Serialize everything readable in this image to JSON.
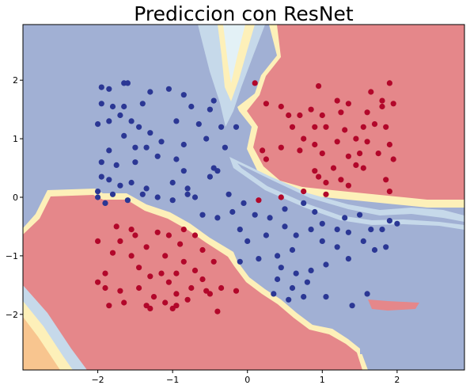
{
  "chart_data": {
    "type": "scatter",
    "title": "Prediccion con ResNet",
    "xlabel": "",
    "ylabel": "",
    "xlim": [
      -3.0,
      2.9
    ],
    "ylim": [
      -2.95,
      2.95
    ],
    "xticks": [
      -2,
      -1,
      0,
      1,
      2
    ],
    "yticks": [
      -2,
      -1,
      0,
      1,
      2
    ],
    "xtick_labels": [
      "−2",
      "−1",
      "0",
      "1",
      "2"
    ],
    "ytick_labels": [
      "−2",
      "−1",
      "0",
      "1",
      "2"
    ],
    "background": "decision-regions",
    "colors": {
      "class_blue": "#2b3794",
      "class_red": "#b2072a",
      "region_blue": "#a1b0d4",
      "region_red": "#e5878a",
      "region_mid_light": "#d6e6f0",
      "region_mid_yellow": "#fdf0b9",
      "region_mid_orange": "#f8c58f"
    },
    "series": [
      {
        "class": "blue",
        "points": [
          [
            -1.95,
            1.88
          ],
          [
            -1.85,
            1.85
          ],
          [
            -1.65,
            1.95
          ],
          [
            -1.6,
            1.95
          ],
          [
            -1.3,
            1.8
          ],
          [
            -1.05,
            1.85
          ],
          [
            -0.85,
            1.75
          ],
          [
            -0.75,
            1.55
          ],
          [
            -0.5,
            1.5
          ],
          [
            -0.45,
            1.65
          ],
          [
            -1.95,
            1.6
          ],
          [
            -1.8,
            1.55
          ],
          [
            -1.65,
            1.55
          ],
          [
            -1.4,
            1.6
          ],
          [
            -1.7,
            1.4
          ],
          [
            -1.85,
            1.3
          ],
          [
            -2.0,
            1.25
          ],
          [
            -1.55,
            1.3
          ],
          [
            -1.45,
            1.2
          ],
          [
            -1.3,
            1.1
          ],
          [
            -0.95,
            1.3
          ],
          [
            -0.65,
            1.25
          ],
          [
            -0.35,
            1.2
          ],
          [
            -0.15,
            1.2
          ],
          [
            -1.65,
            1.05
          ],
          [
            -1.5,
            0.85
          ],
          [
            -1.35,
            0.85
          ],
          [
            -1.15,
            0.95
          ],
          [
            -0.85,
            0.9
          ],
          [
            -0.55,
            1.0
          ],
          [
            -0.3,
            0.85
          ],
          [
            -1.85,
            0.8
          ],
          [
            -1.95,
            0.6
          ],
          [
            -1.75,
            0.55
          ],
          [
            -1.5,
            0.6
          ],
          [
            -1.2,
            0.7
          ],
          [
            -0.95,
            0.65
          ],
          [
            -0.85,
            0.45
          ],
          [
            -0.45,
            0.5
          ],
          [
            -0.4,
            0.45
          ],
          [
            -1.95,
            0.35
          ],
          [
            -1.85,
            0.3
          ],
          [
            -1.7,
            0.2
          ],
          [
            -1.55,
            0.25
          ],
          [
            -1.35,
            0.15
          ],
          [
            -1.0,
            0.25
          ],
          [
            -0.8,
            0.15
          ],
          [
            -0.5,
            0.35
          ],
          [
            -2.0,
            0.1
          ],
          [
            -1.8,
            0.05
          ],
          [
            -1.4,
            0.05
          ],
          [
            -1.2,
            0.0
          ],
          [
            -0.8,
            0.05
          ],
          [
            -0.25,
            0.05
          ],
          [
            -2.0,
            0.0
          ],
          [
            -1.9,
            -0.1
          ],
          [
            -1.6,
            -0.05
          ],
          [
            -1.0,
            -0.05
          ],
          [
            -0.7,
            0.0
          ],
          [
            -0.6,
            -0.3
          ],
          [
            -0.4,
            -0.35
          ],
          [
            -0.2,
            -0.25
          ],
          [
            -0.05,
            -0.1
          ],
          [
            0.1,
            -0.3
          ],
          [
            0.3,
            -0.35
          ],
          [
            0.5,
            -0.2
          ],
          [
            0.75,
            -0.1
          ],
          [
            0.9,
            -0.25
          ],
          [
            -0.1,
            -0.55
          ],
          [
            0.0,
            -0.75
          ],
          [
            0.25,
            -0.65
          ],
          [
            0.5,
            -0.5
          ],
          [
            0.65,
            -0.65
          ],
          [
            0.85,
            -0.55
          ],
          [
            1.0,
            -0.45
          ],
          [
            1.2,
            -0.55
          ],
          [
            1.3,
            -0.35
          ],
          [
            1.5,
            -0.3
          ],
          [
            1.65,
            -0.55
          ],
          [
            1.8,
            -0.55
          ],
          [
            1.9,
            -0.4
          ],
          [
            2.0,
            -0.45
          ],
          [
            1.35,
            -0.6
          ],
          [
            1.55,
            -0.75
          ],
          [
            1.7,
            -0.9
          ],
          [
            1.85,
            -0.85
          ],
          [
            1.2,
            -0.85
          ],
          [
            1.0,
            -0.75
          ],
          [
            0.6,
            -0.9
          ],
          [
            0.4,
            -1.0
          ],
          [
            0.15,
            -1.05
          ],
          [
            -0.1,
            -1.1
          ],
          [
            0.45,
            -1.2
          ],
          [
            0.65,
            -1.3
          ],
          [
            0.85,
            -1.25
          ],
          [
            1.05,
            -1.15
          ],
          [
            1.35,
            -1.05
          ],
          [
            0.4,
            -1.4
          ],
          [
            0.6,
            -1.55
          ],
          [
            0.35,
            -1.65
          ],
          [
            0.55,
            -1.75
          ],
          [
            0.75,
            -1.7
          ],
          [
            1.05,
            -1.7
          ],
          [
            1.4,
            -1.85
          ],
          [
            1.6,
            -1.65
          ],
          [
            0.8,
            -1.45
          ]
        ]
      },
      {
        "class": "red",
        "points": [
          [
            0.1,
            1.95
          ],
          [
            0.95,
            1.9
          ],
          [
            1.9,
            1.95
          ],
          [
            1.65,
            1.8
          ],
          [
            0.25,
            1.6
          ],
          [
            0.45,
            1.55
          ],
          [
            0.55,
            1.4
          ],
          [
            0.85,
            1.5
          ],
          [
            1.2,
            1.65
          ],
          [
            1.35,
            1.6
          ],
          [
            1.6,
            1.45
          ],
          [
            1.8,
            1.65
          ],
          [
            1.95,
            1.6
          ],
          [
            0.7,
            1.4
          ],
          [
            1.0,
            1.4
          ],
          [
            1.25,
            1.45
          ],
          [
            1.8,
            1.55
          ],
          [
            0.6,
            1.2
          ],
          [
            0.9,
            1.2
          ],
          [
            1.05,
            1.2
          ],
          [
            1.3,
            1.15
          ],
          [
            1.55,
            1.2
          ],
          [
            1.7,
            1.25
          ],
          [
            1.85,
            1.2
          ],
          [
            0.75,
            1.0
          ],
          [
            0.9,
            0.9
          ],
          [
            1.2,
            0.95
          ],
          [
            1.45,
            1.0
          ],
          [
            1.6,
            0.95
          ],
          [
            1.9,
            0.9
          ],
          [
            0.2,
            0.8
          ],
          [
            0.45,
            0.85
          ],
          [
            0.7,
            0.8
          ],
          [
            1.0,
            0.75
          ],
          [
            1.35,
            0.7
          ],
          [
            1.5,
            0.75
          ],
          [
            1.75,
            0.75
          ],
          [
            0.25,
            0.65
          ],
          [
            0.9,
            0.45
          ],
          [
            1.15,
            0.5
          ],
          [
            1.45,
            0.55
          ],
          [
            1.55,
            0.5
          ],
          [
            1.95,
            0.65
          ],
          [
            0.95,
            0.35
          ],
          [
            1.25,
            0.3
          ],
          [
            1.85,
            0.3
          ],
          [
            1.05,
            0.25
          ],
          [
            1.35,
            0.2
          ],
          [
            1.9,
            0.1
          ],
          [
            0.45,
            0.0
          ],
          [
            0.75,
            0.1
          ],
          [
            1.05,
            0.05
          ],
          [
            0.15,
            -0.05
          ],
          [
            -1.75,
            -0.5
          ],
          [
            -1.55,
            -0.55
          ],
          [
            -1.5,
            -0.65
          ],
          [
            -1.2,
            -0.6
          ],
          [
            -1.05,
            -0.65
          ],
          [
            -0.85,
            -0.55
          ],
          [
            -0.7,
            -0.65
          ],
          [
            -2.0,
            -0.75
          ],
          [
            -1.7,
            -0.75
          ],
          [
            -1.35,
            -0.85
          ],
          [
            -0.9,
            -0.8
          ],
          [
            -0.6,
            -0.9
          ],
          [
            -1.8,
            -0.95
          ],
          [
            -1.55,
            -1.0
          ],
          [
            -1.45,
            -1.2
          ],
          [
            -1.1,
            -1.0
          ],
          [
            -0.85,
            -1.1
          ],
          [
            -0.7,
            -1.25
          ],
          [
            -0.45,
            -1.1
          ],
          [
            -1.9,
            -1.3
          ],
          [
            -1.3,
            -1.35
          ],
          [
            -1.15,
            -1.3
          ],
          [
            -1.05,
            -1.45
          ],
          [
            -0.95,
            -1.3
          ],
          [
            -0.6,
            -1.4
          ],
          [
            -2.0,
            -1.45
          ],
          [
            -1.9,
            -1.55
          ],
          [
            -1.7,
            -1.6
          ],
          [
            -1.45,
            -1.55
          ],
          [
            -1.25,
            -1.7
          ],
          [
            -0.95,
            -1.65
          ],
          [
            -0.75,
            -1.55
          ],
          [
            -0.55,
            -1.6
          ],
          [
            -0.35,
            -1.55
          ],
          [
            -0.15,
            -1.6
          ],
          [
            -1.85,
            -1.85
          ],
          [
            -1.65,
            -1.8
          ],
          [
            -1.35,
            -1.85
          ],
          [
            -1.1,
            -1.8
          ],
          [
            -0.95,
            -1.85
          ],
          [
            -0.8,
            -1.75
          ],
          [
            -0.5,
            -1.65
          ],
          [
            -0.4,
            -1.95
          ],
          [
            -1.3,
            -1.9
          ],
          [
            -1.0,
            -1.9
          ]
        ]
      }
    ]
  }
}
